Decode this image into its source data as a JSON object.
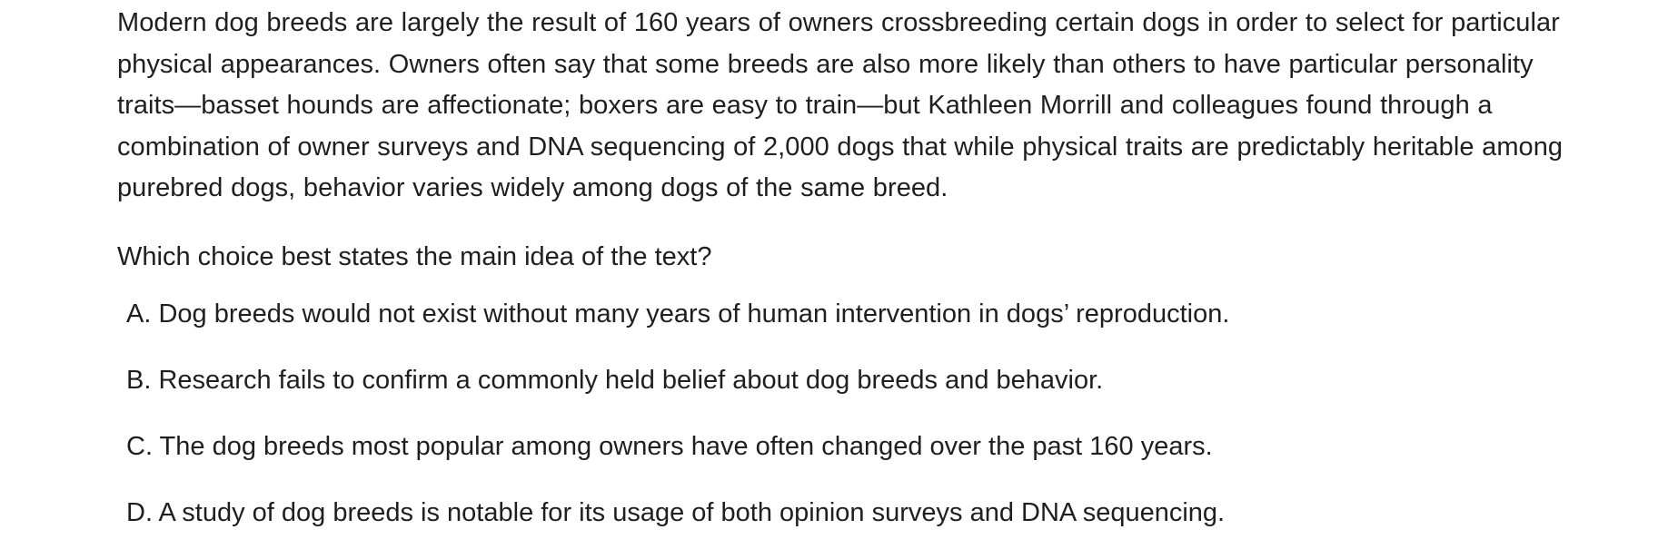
{
  "passage": {
    "text": "Modern dog breeds are largely the result of 160 years of owners crossbreeding certain dogs in order to select for particular physical appearances. Owners often say that some breeds are also more likely than others to have particular personality traits—basset hounds are affectionate; boxers are easy to train—but Kathleen Morrill and colleagues found through a combination of owner surveys and DNA sequencing of 2,000 dogs that while physical traits are predictably heritable among purebred dogs, behavior varies widely among dogs of the same breed."
  },
  "question": {
    "text": "Which choice best states the main idea of the text?"
  },
  "choices": [
    {
      "letter": "A.",
      "text": "Dog breeds would not exist without many years of human intervention in dogs’ reproduction."
    },
    {
      "letter": "B.",
      "text": "Research fails to confirm a commonly held belief about dog breeds and behavior."
    },
    {
      "letter": "C.",
      "text": "The dog breeds most popular among owners have often changed over the past 160 years."
    },
    {
      "letter": "D.",
      "text": "A study of dog breeds is notable for its usage of both opinion surveys and DNA sequencing."
    }
  ]
}
